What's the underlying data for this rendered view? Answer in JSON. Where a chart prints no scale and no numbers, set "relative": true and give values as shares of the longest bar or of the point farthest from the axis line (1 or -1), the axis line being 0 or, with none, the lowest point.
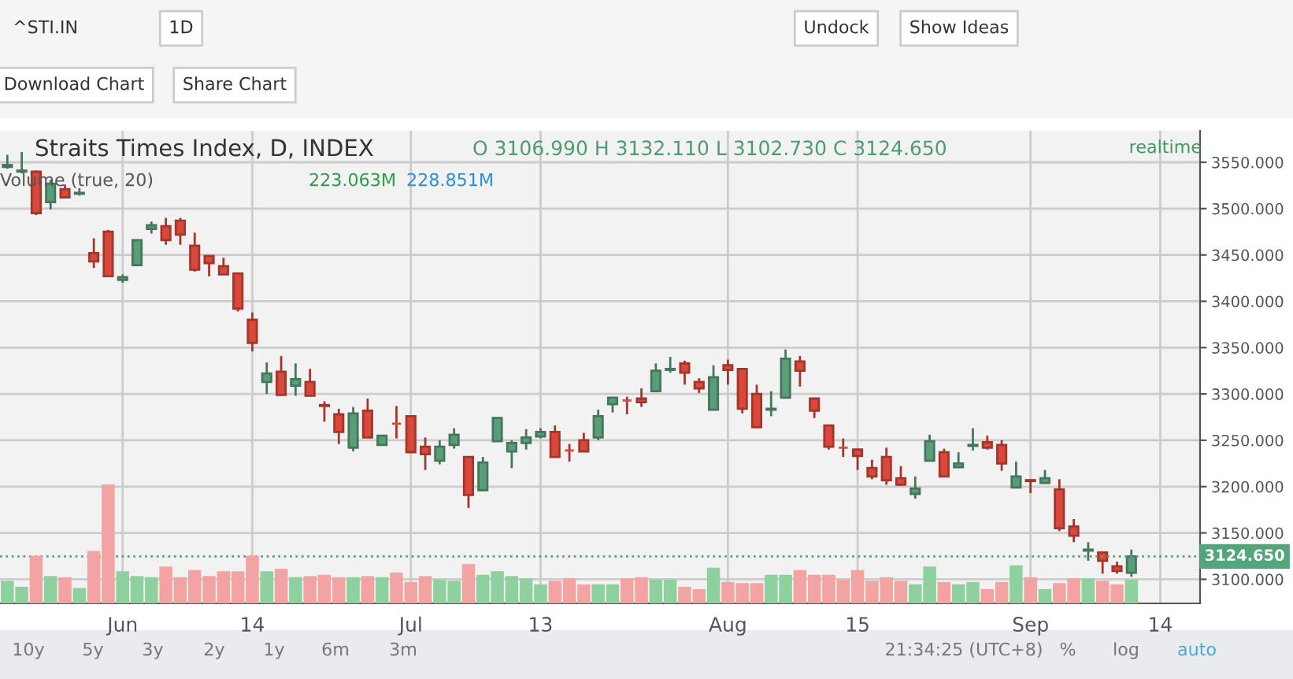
{
  "chart_data": [
    {
      "type": "candlestick",
      "title": "Straits Times Index, D, INDEX",
      "subtitle": "O 3106.990 H 3132.110 L 3102.730 C 3124.650",
      "categories": [
        null,
        null,
        null,
        null,
        null,
        null,
        null,
        null,
        "Jun",
        null,
        null,
        null,
        null,
        null,
        null,
        null,
        null,
        "14",
        null,
        null,
        null,
        null,
        null,
        null,
        null,
        null,
        null,
        null,
        "Jul",
        null,
        null,
        null,
        null,
        null,
        null,
        null,
        null,
        "13",
        null,
        null,
        null,
        null,
        null,
        null,
        null,
        null,
        null,
        null,
        null,
        null,
        "Aug",
        null,
        null,
        null,
        null,
        null,
        null,
        null,
        null,
        "15",
        null,
        null,
        null,
        null,
        null,
        null,
        null,
        null,
        null,
        null,
        null,
        "Sep",
        null,
        null,
        null,
        null,
        null,
        null,
        null,
        null,
        "14"
      ],
      "ohlc": [
        [
          3545,
          3558,
          3543,
          3547
        ],
        [
          3540,
          3561,
          3538,
          3541
        ],
        [
          3540,
          3541,
          3493,
          3495
        ],
        [
          3507,
          3531,
          3499,
          3527
        ],
        [
          3521,
          3526,
          3512,
          3512
        ],
        [
          3516,
          3522,
          3514,
          3517
        ],
        [
          3452,
          3468,
          3436,
          3443
        ],
        [
          3475,
          3477,
          3427,
          3427
        ],
        [
          3423,
          3429,
          3420,
          3426
        ],
        [
          3439,
          3466,
          3439,
          3466
        ],
        [
          3478,
          3486,
          3473,
          3482
        ],
        [
          3481,
          3490,
          3461,
          3466
        ],
        [
          3487,
          3490,
          3461,
          3472
        ],
        [
          3460,
          3474,
          3432,
          3434
        ],
        [
          3449,
          3449,
          3427,
          3441
        ],
        [
          3438,
          3447,
          3429,
          3429
        ],
        [
          3430,
          3430,
          3389,
          3392
        ],
        [
          3380,
          3388,
          3346,
          3355
        ],
        [
          3313,
          3334,
          3300,
          3322
        ],
        [
          3324,
          3341,
          3299,
          3299
        ],
        [
          3309,
          3333,
          3298,
          3316
        ],
        [
          3313,
          3327,
          3298,
          3298
        ],
        [
          3288,
          3292,
          3270,
          3287
        ],
        [
          3278,
          3284,
          3246,
          3259
        ],
        [
          3242,
          3286,
          3238,
          3279
        ],
        [
          3282,
          3295,
          3253,
          3253
        ],
        [
          3245,
          3255,
          3245,
          3255
        ],
        [
          3268,
          3287,
          3252,
          3268
        ],
        [
          3276,
          3276,
          3237,
          3237
        ],
        [
          3243,
          3253,
          3218,
          3235
        ],
        [
          3228,
          3250,
          3224,
          3243
        ],
        [
          3245,
          3263,
          3241,
          3256
        ],
        [
          3232,
          3232,
          3177,
          3191
        ],
        [
          3196,
          3232,
          3196,
          3226
        ],
        [
          3249,
          3274,
          3249,
          3274
        ],
        [
          3238,
          3250,
          3220,
          3247
        ],
        [
          3247,
          3262,
          3240,
          3253
        ],
        [
          3254,
          3263,
          3252,
          3259
        ],
        [
          3259,
          3266,
          3232,
          3232
        ],
        [
          3239,
          3246,
          3227,
          3239
        ],
        [
          3250,
          3258,
          3238,
          3238
        ],
        [
          3253,
          3283,
          3250,
          3276
        ],
        [
          3289,
          3296,
          3280,
          3296
        ],
        [
          3293,
          3297,
          3278,
          3293
        ],
        [
          3295,
          3306,
          3286,
          3291
        ],
        [
          3303,
          3333,
          3303,
          3325
        ],
        [
          3326,
          3340,
          3323,
          3327
        ],
        [
          3333,
          3336,
          3310,
          3323
        ],
        [
          3313,
          3317,
          3301,
          3306
        ],
        [
          3283,
          3331,
          3283,
          3318
        ],
        [
          3331,
          3337,
          3310,
          3326
        ],
        [
          3327,
          3327,
          3279,
          3284
        ],
        [
          3300,
          3310,
          3264,
          3264
        ],
        [
          3283,
          3303,
          3276,
          3284
        ],
        [
          3296,
          3348,
          3296,
          3338
        ],
        [
          3335,
          3341,
          3308,
          3325
        ],
        [
          3295,
          3295,
          3274,
          3282
        ],
        [
          3266,
          3266,
          3240,
          3243
        ],
        [
          3242,
          3252,
          3232,
          3242
        ],
        [
          3240,
          3240,
          3218,
          3233
        ],
        [
          3220,
          3229,
          3208,
          3211
        ],
        [
          3232,
          3242,
          3202,
          3207
        ],
        [
          3209,
          3222,
          3201,
          3202
        ],
        [
          3192,
          3211,
          3187,
          3198
        ],
        [
          3228,
          3256,
          3228,
          3249
        ],
        [
          3237,
          3241,
          3211,
          3211
        ],
        [
          3221,
          3237,
          3220,
          3225
        ],
        [
          3244,
          3263,
          3239,
          3245
        ],
        [
          3248,
          3255,
          3240,
          3242
        ],
        [
          3245,
          3250,
          3217,
          3225
        ],
        [
          3199,
          3227,
          3199,
          3211
        ],
        [
          3207,
          3207,
          3193,
          3206
        ],
        [
          3204,
          3218,
          3204,
          3209
        ],
        [
          3197,
          3208,
          3152,
          3155
        ],
        [
          3157,
          3165,
          3140,
          3147
        ],
        [
          3131,
          3140,
          3120,
          3132
        ],
        [
          3129,
          3129,
          3106,
          3120
        ],
        [
          3114,
          3119,
          3106,
          3109
        ],
        [
          3106.99,
          3132.11,
          3102.73,
          3124.65
        ],
        null,
        null
      ],
      "colors": [
        "#5a9e79",
        "#5a9e79",
        "#d9483b",
        "#5a9e79",
        "#d9483b",
        "#5a9e79",
        "#d9483b",
        "#d9483b",
        "#5a9e79",
        "#5a9e79",
        "#5a9e79",
        "#d9483b",
        "#d9483b",
        "#d9483b",
        "#d9483b",
        "#d9483b",
        "#d9483b",
        "#d9483b",
        "#5a9e79",
        "#d9483b",
        "#5a9e79",
        "#d9483b",
        "#d9483b",
        "#d9483b",
        "#5a9e79",
        "#d9483b",
        "#5a9e79",
        "#d9483b",
        "#d9483b",
        "#d9483b",
        "#5a9e79",
        "#5a9e79",
        "#d9483b",
        "#5a9e79",
        "#5a9e79",
        "#5a9e79",
        "#5a9e79",
        "#5a9e79",
        "#d9483b",
        "#d9483b",
        "#d9483b",
        "#5a9e79",
        "#5a9e79",
        "#d9483b",
        "#d9483b",
        "#5a9e79",
        "#5a9e79",
        "#d9483b",
        "#d9483b",
        "#5a9e79",
        "#d9483b",
        "#d9483b",
        "#d9483b",
        "#5a9e79",
        "#5a9e79",
        "#d9483b",
        "#d9483b",
        "#d9483b",
        "#d9483b",
        "#d9483b",
        "#d9483b",
        "#d9483b",
        "#d9483b",
        "#5a9e79",
        "#5a9e79",
        "#d9483b",
        "#5a9e79",
        "#5a9e79",
        "#d9483b",
        "#d9483b",
        "#5a9e79",
        "#d9483b",
        "#5a9e79",
        "#d9483b",
        "#d9483b",
        "#5a9e79",
        "#d9483b",
        "#d9483b",
        "#5a9e79",
        null,
        null
      ],
      "ylim": [
        3074,
        3584
      ],
      "yticks": [
        {
          "value": 3100,
          "label": "3100.000"
        },
        {
          "value": 3150,
          "label": "3150.000"
        },
        {
          "value": 3200,
          "label": "3200.000"
        },
        {
          "value": 3250,
          "label": "3250.000"
        },
        {
          "value": 3300,
          "label": "3300.000"
        },
        {
          "value": 3350,
          "label": "3350.000"
        },
        {
          "value": 3400,
          "label": "3400.000"
        },
        {
          "value": 3450,
          "label": "3450.000"
        },
        {
          "value": 3500,
          "label": "3500.000"
        },
        {
          "value": 3550,
          "label": "3550.000"
        }
      ],
      "grid": true,
      "ref_lines": [
        {
          "axis": "y",
          "value": 3124.65,
          "label": "3124.650",
          "color": "#53a57a",
          "line_style": "dotted"
        }
      ],
      "annotations": [
        "^STI.IN",
        "1D",
        "Undock",
        "Show Ideas",
        "Download Chart",
        "Share Chart",
        "realtime",
        "10y",
        "5y",
        "3y",
        "2y",
        "1y",
        "6m",
        "3m",
        "21:34:25 (UTC+8)",
        "%",
        "log",
        "auto"
      ]
    },
    {
      "type": "bar",
      "relative": true,
      "categories": [
        null,
        null,
        null,
        null,
        null,
        null,
        null,
        null,
        null,
        null,
        null,
        null,
        null,
        null,
        null,
        null,
        null,
        null,
        null,
        null,
        null,
        null,
        null,
        null,
        null,
        null,
        null,
        null,
        null,
        null,
        null,
        null,
        null,
        null,
        null,
        null,
        null,
        null,
        null,
        null,
        null,
        null,
        null,
        null,
        null,
        null,
        null,
        null,
        null,
        null,
        null,
        null,
        null,
        null,
        null,
        null,
        null,
        null,
        null,
        null,
        null,
        null,
        null,
        null,
        null,
        null,
        null,
        null,
        null,
        null,
        null,
        null,
        null,
        null,
        null,
        null,
        null,
        null,
        null
      ],
      "annotations": [
        "Volume (true, 20)",
        "223.063M",
        "228.851M"
      ],
      "series": [
        {
          "type": "bar",
          "values": [
            0.19,
            0.14,
            0.4,
            0.23,
            0.22,
            0.13,
            0.44,
            1,
            0.27,
            0.23,
            0.22,
            0.31,
            0.22,
            0.28,
            0.23,
            0.27,
            0.27,
            0.4,
            0.27,
            0.29,
            0.22,
            0.23,
            0.24,
            0.22,
            0.22,
            0.23,
            0.22,
            0.26,
            0.18,
            0.23,
            0.2,
            0.19,
            0.33,
            0.24,
            0.27,
            0.23,
            0.21,
            0.16,
            0.19,
            0.21,
            0.16,
            0.16,
            0.16,
            0.21,
            0.22,
            0.2,
            0.2,
            0.14,
            0.12,
            0.3,
            0.18,
            0.17,
            0.17,
            0.24,
            0.24,
            0.28,
            0.24,
            0.24,
            0.2,
            0.28,
            0.19,
            0.22,
            0.19,
            0.16,
            0.31,
            0.18,
            0.16,
            0.18,
            0.12,
            0.18,
            0.32,
            0.22,
            0.12,
            0.17,
            0.21,
            0.21,
            0.19,
            0.16,
            0.2
          ],
          "colors": [
            "#8fd19e",
            "#8fd19e",
            "#f4a3a3",
            "#8fd19e",
            "#f4a3a3",
            "#8fd19e",
            "#f4a3a3",
            "#f4a3a3",
            "#8fd19e",
            "#8fd19e",
            "#8fd19e",
            "#f4a3a3",
            "#f4a3a3",
            "#f4a3a3",
            "#f4a3a3",
            "#f4a3a3",
            "#f4a3a3",
            "#f4a3a3",
            "#8fd19e",
            "#f4a3a3",
            "#8fd19e",
            "#f4a3a3",
            "#f4a3a3",
            "#f4a3a3",
            "#8fd19e",
            "#f4a3a3",
            "#8fd19e",
            "#f4a3a3",
            "#f4a3a3",
            "#f4a3a3",
            "#8fd19e",
            "#8fd19e",
            "#f4a3a3",
            "#8fd19e",
            "#8fd19e",
            "#8fd19e",
            "#8fd19e",
            "#8fd19e",
            "#f4a3a3",
            "#f4a3a3",
            "#f4a3a3",
            "#8fd19e",
            "#8fd19e",
            "#f4a3a3",
            "#f4a3a3",
            "#8fd19e",
            "#8fd19e",
            "#f4a3a3",
            "#f4a3a3",
            "#8fd19e",
            "#f4a3a3",
            "#f4a3a3",
            "#f4a3a3",
            "#8fd19e",
            "#8fd19e",
            "#f4a3a3",
            "#f4a3a3",
            "#f4a3a3",
            "#f4a3a3",
            "#f4a3a3",
            "#f4a3a3",
            "#f4a3a3",
            "#f4a3a3",
            "#8fd19e",
            "#8fd19e",
            "#f4a3a3",
            "#8fd19e",
            "#8fd19e",
            "#f4a3a3",
            "#f4a3a3",
            "#8fd19e",
            "#f4a3a3",
            "#8fd19e",
            "#f4a3a3",
            "#f4a3a3",
            "#8fd19e",
            "#f4a3a3",
            "#f4a3a3",
            "#8fd19e"
          ]
        }
      ]
    }
  ]
}
